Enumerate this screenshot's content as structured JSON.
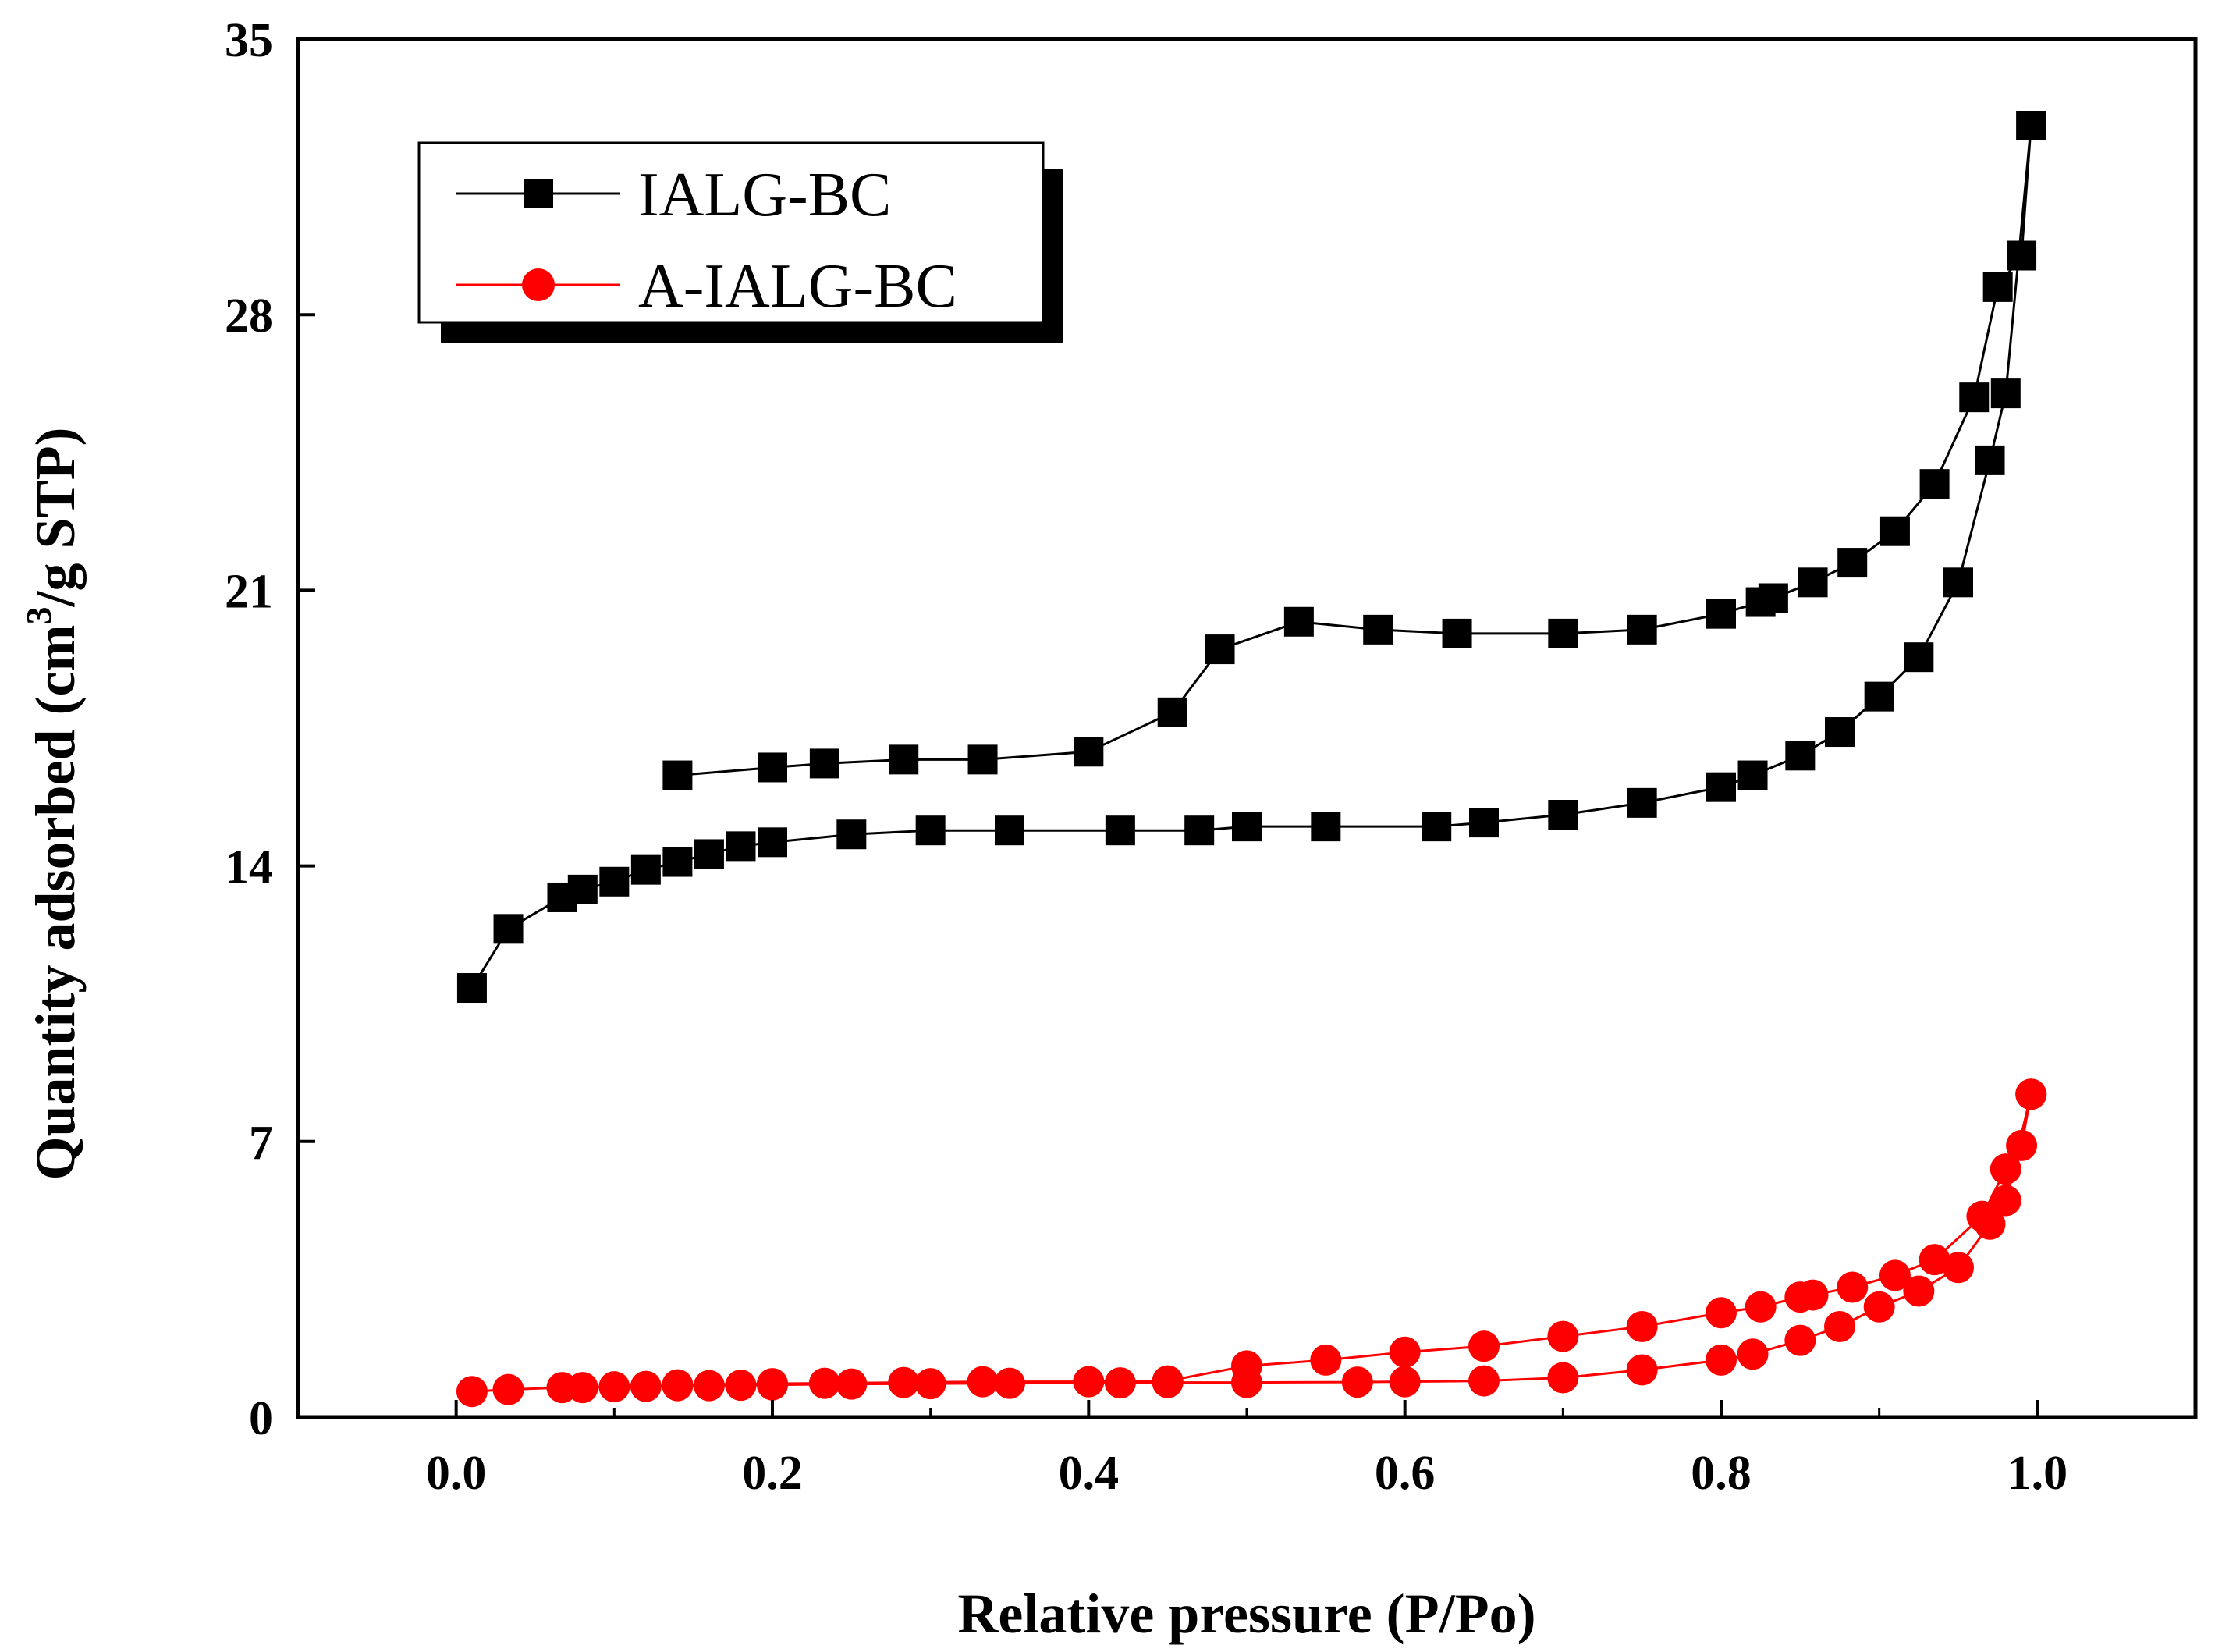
{
  "chart_data": {
    "type": "line",
    "xlabel": "Relative pressure (P/Po)",
    "ylabel_parts": {
      "before": "Quantity adsorbed (cm",
      "sup": "3",
      "after": "/g STP)"
    },
    "xlim": [
      -0.1,
      1.1
    ],
    "ylim": [
      0,
      35
    ],
    "xticks": [
      0.0,
      0.2,
      0.4,
      0.6,
      0.8,
      1.0
    ],
    "xtick_labels": [
      "0.0",
      "0.2",
      "0.4",
      "0.6",
      "0.8",
      "1.0"
    ],
    "yticks": [
      0,
      7,
      14,
      21,
      28,
      35
    ],
    "ytick_labels": [
      "0",
      "7",
      "14",
      "21",
      "28",
      "35"
    ],
    "legend_position": "top-left",
    "series": [
      {
        "name": "IALG-BC",
        "color": "#000000",
        "marker": "square",
        "adsorption": [
          [
            0.01,
            10.9
          ],
          [
            0.033,
            12.4
          ],
          [
            0.067,
            13.2
          ],
          [
            0.08,
            13.4
          ],
          [
            0.1,
            13.6
          ],
          [
            0.12,
            13.9
          ],
          [
            0.14,
            14.1
          ],
          [
            0.16,
            14.3
          ],
          [
            0.18,
            14.5
          ],
          [
            0.2,
            14.6
          ],
          [
            0.25,
            14.8
          ],
          [
            0.3,
            14.9
          ],
          [
            0.35,
            14.9
          ],
          [
            0.42,
            14.9
          ],
          [
            0.47,
            14.9
          ],
          [
            0.5,
            15.0
          ],
          [
            0.55,
            15.0
          ],
          [
            0.62,
            15.0
          ],
          [
            0.65,
            15.1
          ],
          [
            0.7,
            15.3
          ],
          [
            0.75,
            15.6
          ],
          [
            0.8,
            16.0
          ],
          [
            0.82,
            16.3
          ],
          [
            0.85,
            16.8
          ],
          [
            0.875,
            17.4
          ],
          [
            0.9,
            18.3
          ],
          [
            0.925,
            19.3
          ],
          [
            0.95,
            21.2
          ],
          [
            0.97,
            24.3
          ],
          [
            0.98,
            26.0
          ],
          [
            0.996,
            32.8
          ]
        ],
        "desorption": [
          [
            0.996,
            32.8
          ],
          [
            0.99,
            29.5
          ],
          [
            0.975,
            28.7
          ],
          [
            0.96,
            25.9
          ],
          [
            0.935,
            23.7
          ],
          [
            0.91,
            22.5
          ],
          [
            0.883,
            21.7
          ],
          [
            0.858,
            21.2
          ],
          [
            0.833,
            20.8
          ],
          [
            0.825,
            20.7
          ],
          [
            0.8,
            20.4
          ],
          [
            0.75,
            20.0
          ],
          [
            0.7,
            19.9
          ],
          [
            0.633,
            19.9
          ],
          [
            0.583,
            20.0
          ],
          [
            0.533,
            20.2
          ],
          [
            0.483,
            19.5
          ],
          [
            0.453,
            17.9
          ],
          [
            0.4,
            16.9
          ],
          [
            0.333,
            16.7
          ],
          [
            0.283,
            16.7
          ],
          [
            0.233,
            16.6
          ],
          [
            0.2,
            16.5
          ],
          [
            0.14,
            16.3
          ]
        ]
      },
      {
        "name": "A-IALG-BC",
        "color": "#ff0000",
        "marker": "circle",
        "adsorption": [
          [
            0.01,
            0.65
          ],
          [
            0.033,
            0.7
          ],
          [
            0.067,
            0.75
          ],
          [
            0.08,
            0.75
          ],
          [
            0.1,
            0.77
          ],
          [
            0.12,
            0.78
          ],
          [
            0.14,
            0.8
          ],
          [
            0.16,
            0.8
          ],
          [
            0.18,
            0.81
          ],
          [
            0.2,
            0.82
          ],
          [
            0.25,
            0.84
          ],
          [
            0.3,
            0.85
          ],
          [
            0.35,
            0.86
          ],
          [
            0.42,
            0.87
          ],
          [
            0.45,
            0.88
          ],
          [
            0.5,
            0.88
          ],
          [
            0.57,
            0.89
          ],
          [
            0.6,
            0.9
          ],
          [
            0.65,
            0.92
          ],
          [
            0.7,
            1.0
          ],
          [
            0.75,
            1.2
          ],
          [
            0.8,
            1.45
          ],
          [
            0.82,
            1.6
          ],
          [
            0.85,
            1.95
          ],
          [
            0.875,
            2.3
          ],
          [
            0.9,
            2.8
          ],
          [
            0.925,
            3.2
          ],
          [
            0.95,
            3.8
          ],
          [
            0.97,
            4.9
          ],
          [
            0.98,
            5.5
          ],
          [
            0.996,
            8.2
          ]
        ],
        "desorption": [
          [
            0.996,
            8.2
          ],
          [
            0.99,
            6.9
          ],
          [
            0.98,
            6.3
          ],
          [
            0.965,
            5.1
          ],
          [
            0.935,
            4.0
          ],
          [
            0.91,
            3.6
          ],
          [
            0.883,
            3.3
          ],
          [
            0.858,
            3.1
          ],
          [
            0.85,
            3.05
          ],
          [
            0.825,
            2.8
          ],
          [
            0.8,
            2.65
          ],
          [
            0.75,
            2.3
          ],
          [
            0.7,
            2.05
          ],
          [
            0.65,
            1.8
          ],
          [
            0.6,
            1.65
          ],
          [
            0.55,
            1.45
          ],
          [
            0.5,
            1.3
          ],
          [
            0.45,
            0.92
          ],
          [
            0.4,
            0.9
          ],
          [
            0.333,
            0.9
          ],
          [
            0.283,
            0.88
          ],
          [
            0.233,
            0.86
          ],
          [
            0.2,
            0.85
          ],
          [
            0.14,
            0.82
          ]
        ]
      }
    ]
  }
}
